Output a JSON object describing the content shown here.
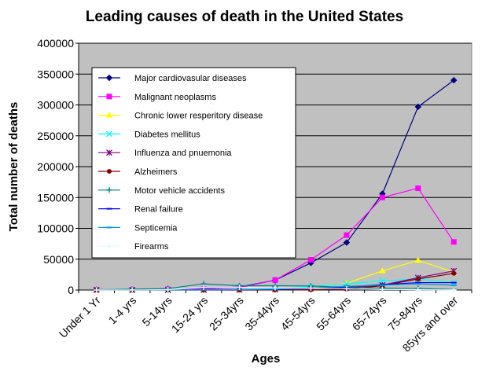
{
  "chart_data": {
    "type": "line",
    "title": "Leading causes of death in the United States",
    "xlabel": "Ages",
    "ylabel": "Total number of deaths",
    "ylim": [
      0,
      400000
    ],
    "yticks": [
      "0",
      "50000",
      "100000",
      "150000",
      "200000",
      "250000",
      "300000",
      "350000",
      "400000"
    ],
    "grid": "horizontal",
    "legend_position": "upper-left inside plot",
    "plot_background": "#c0c0c0",
    "categories": [
      "Under 1 Yr",
      "1-4 yrs",
      "5-14yrs",
      "15-24 yrs",
      "25-34yrs",
      "35-44yrs",
      "45-54yrs",
      "55-64yrs",
      "65-74yrs",
      "75-84yrs",
      "85yrs and over"
    ],
    "series": [
      {
        "name": "Major cardiovasular diseases",
        "color": "#000080",
        "marker": "diamond",
        "values": [
          700,
          300,
          700,
          2500,
          5000,
          16000,
          44000,
          77000,
          156000,
          297000,
          340000
        ]
      },
      {
        "name": "Malignant neoplasms",
        "color": "#ff00ff",
        "marker": "square",
        "values": [
          100,
          400,
          1200,
          1800,
          4000,
          16000,
          49000,
          89000,
          150000,
          165000,
          78000
        ]
      },
      {
        "name": "Chronic lower resperitory disease",
        "color": "#ffff00",
        "marker": "triangle",
        "values": [
          0,
          50,
          150,
          200,
          300,
          1000,
          3500,
          11000,
          31000,
          48000,
          29000
        ]
      },
      {
        "name": "Diabetes mellitus",
        "color": "#00ffff",
        "marker": "x",
        "values": [
          0,
          0,
          50,
          150,
          600,
          2000,
          5500,
          10000,
          15000,
          18000,
          12000
        ]
      },
      {
        "name": "Influenza and pnuemonia",
        "color": "#800080",
        "marker": "star",
        "values": [
          300,
          150,
          100,
          200,
          400,
          1000,
          2500,
          3500,
          8000,
          20000,
          31000
        ]
      },
      {
        "name": "Alzheimers",
        "color": "#800000",
        "marker": "circle",
        "values": [
          0,
          0,
          0,
          0,
          0,
          100,
          500,
          1500,
          7000,
          18000,
          27000
        ]
      },
      {
        "name": "Motor vehicle accidents",
        "color": "#008080",
        "marker": "plus",
        "values": [
          300,
          1500,
          2500,
          10000,
          7000,
          7000,
          6500,
          4500,
          3000,
          2500,
          1000
        ]
      },
      {
        "name": "Renal failure",
        "color": "#0000ff",
        "marker": "dash",
        "values": [
          200,
          50,
          100,
          200,
          400,
          1000,
          2500,
          5000,
          9000,
          12000,
          12000
        ]
      },
      {
        "name": "Septicemia",
        "color": "#0099cc",
        "marker": "dash",
        "values": [
          300,
          100,
          100,
          300,
          600,
          1500,
          3500,
          6000,
          8000,
          10000,
          8000
        ]
      },
      {
        "name": "Firearms",
        "color": "#e6f5ff",
        "marker": "cross",
        "values": [
          0,
          100,
          600,
          4500,
          4500,
          3500,
          3000,
          2000,
          1000,
          500,
          200
        ]
      }
    ]
  }
}
